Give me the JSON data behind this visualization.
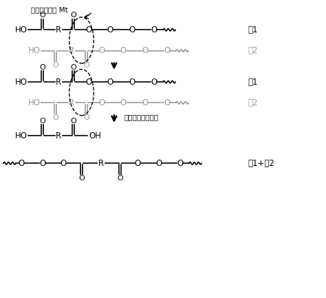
{
  "background_color": "#ffffff",
  "text_color": "#000000",
  "gray_color": "#999999",
  "figure_width": 4.74,
  "figure_height": 4.33,
  "dpi": 100,
  "label_chain1": "链1",
  "label_chain2": "链2",
  "label_chain12": "链1+链2",
  "catalyst_label": "酯交换催化剂 Mt",
  "sublimation_label": "二元缧酸升华脱出",
  "fs_main": 8.5,
  "fs_label": 9.0,
  "lw": 1.2
}
